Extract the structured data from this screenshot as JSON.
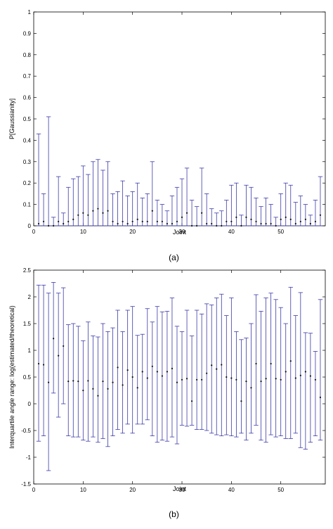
{
  "chart_data": [
    {
      "type": "scatter",
      "subplot_label": "(a)",
      "xlabel": "Joint",
      "ylabel": "P[Gaussianity]",
      "xlim": [
        0,
        59
      ],
      "ylim": [
        0,
        1
      ],
      "xticks": [
        0,
        10,
        20,
        30,
        40,
        50
      ],
      "yticks": [
        0,
        0.1,
        0.2,
        0.3,
        0.4,
        0.5,
        0.6,
        0.7,
        0.8,
        0.9,
        1
      ],
      "ytick_labels": [
        "0",
        "0.1",
        "0.2",
        "0.3",
        "0.4",
        "0.5",
        "0.6",
        "0.7",
        "0.8",
        "0.9",
        "1"
      ],
      "grid": false,
      "color": "#3a3aa8",
      "series": [
        {
          "x": [
            1,
            2,
            3,
            4,
            5,
            6,
            7,
            8,
            9,
            10,
            11,
            12,
            13,
            14,
            15,
            16,
            17,
            18,
            19,
            20,
            21,
            22,
            23,
            24,
            25,
            26,
            27,
            28,
            29,
            30,
            31,
            32,
            33,
            34,
            35,
            36,
            37,
            38,
            39,
            40,
            41,
            42,
            43,
            44,
            45,
            46,
            47,
            48,
            49,
            50,
            51,
            52,
            53,
            54,
            55,
            56,
            57,
            58
          ],
          "y": [
            0.01,
            0.02,
            0.0,
            0.0,
            0.02,
            0.01,
            0.02,
            0.03,
            0.05,
            0.06,
            0.05,
            0.07,
            0.08,
            0.06,
            0.07,
            0.02,
            0.01,
            0.02,
            0.01,
            0.02,
            0.03,
            0.02,
            0.02,
            0.07,
            0.02,
            0.02,
            0.01,
            0.01,
            0.02,
            0.04,
            0.06,
            0.0,
            0.0,
            0.06,
            0.01,
            0.01,
            0.0,
            0.0,
            0.02,
            0.02,
            0.04,
            0.0,
            0.04,
            0.03,
            0.02,
            0.01,
            0.01,
            0.01,
            0.0,
            0.03,
            0.04,
            0.03,
            0.01,
            0.02,
            0.03,
            0.01,
            0.02,
            0.05
          ],
          "low": [
            0,
            0,
            0,
            0,
            0,
            0,
            0,
            0,
            0,
            0,
            0,
            0,
            0,
            0,
            0,
            0,
            0,
            0,
            0,
            0,
            0,
            0,
            0,
            0,
            0,
            0,
            0,
            0,
            0,
            0,
            0,
            0,
            0,
            0,
            0,
            0,
            0,
            0,
            0,
            0,
            0,
            0,
            0,
            0,
            0,
            0,
            0,
            0,
            0,
            0,
            0,
            0,
            0,
            0,
            0,
            0,
            0,
            0
          ],
          "high": [
            0.43,
            0.15,
            0.51,
            0.04,
            0.23,
            0.06,
            0.18,
            0.22,
            0.23,
            0.28,
            0.24,
            0.3,
            0.31,
            0.26,
            0.3,
            0.15,
            0.16,
            0.21,
            0.14,
            0.16,
            0.2,
            0.13,
            0.15,
            0.3,
            0.12,
            0.1,
            0.07,
            0.14,
            0.18,
            0.22,
            0.27,
            0.12,
            0.09,
            0.27,
            0.15,
            0.08,
            0.06,
            0.07,
            0.12,
            0.19,
            0.2,
            0.05,
            0.19,
            0.18,
            0.13,
            0.09,
            0.13,
            0.1,
            0.04,
            0.15,
            0.2,
            0.19,
            0.11,
            0.14,
            0.1,
            0.05,
            0.12,
            0.23
          ]
        }
      ]
    },
    {
      "type": "scatter",
      "subplot_label": "(b)",
      "xlabel": "Joint",
      "ylabel": "Interquartile angle range: log(estimated/theoretical)",
      "xlim": [
        0,
        59
      ],
      "ylim": [
        -1.5,
        2.5
      ],
      "xticks": [
        0,
        10,
        20,
        30,
        40,
        50
      ],
      "yticks": [
        -1.5,
        -1,
        -0.5,
        0,
        0.5,
        1,
        1.5,
        2,
        2.5
      ],
      "ytick_labels": [
        "-1.5",
        "-1",
        "-0.5",
        "0",
        "0.5",
        "1",
        "1.5",
        "2",
        "2.5"
      ],
      "grid": false,
      "color": "#3a3aa8",
      "series": [
        {
          "x": [
            1,
            2,
            3,
            4,
            5,
            6,
            7,
            8,
            9,
            10,
            11,
            12,
            13,
            14,
            15,
            16,
            17,
            18,
            19,
            20,
            21,
            22,
            23,
            24,
            25,
            26,
            27,
            28,
            29,
            30,
            31,
            32,
            33,
            34,
            35,
            36,
            37,
            38,
            39,
            40,
            41,
            42,
            43,
            44,
            45,
            46,
            47,
            48,
            49,
            50,
            51,
            52,
            53,
            54,
            55,
            56,
            57,
            58
          ],
          "y": [
            0.75,
            0.73,
            0.4,
            1.22,
            0.9,
            1.08,
            0.42,
            0.43,
            0.42,
            0.25,
            0.43,
            0.28,
            0.15,
            0.42,
            0.28,
            0.4,
            0.68,
            0.35,
            0.63,
            0.5,
            0.3,
            0.6,
            0.48,
            0.7,
            0.6,
            0.52,
            0.6,
            0.66,
            0.4,
            0.45,
            0.47,
            0.05,
            0.45,
            0.45,
            0.57,
            0.72,
            0.65,
            0.73,
            0.5,
            0.48,
            0.45,
            0.05,
            0.42,
            0.3,
            0.75,
            0.42,
            0.47,
            0.75,
            0.47,
            0.45,
            0.6,
            0.8,
            0.48,
            0.53,
            0.6,
            0.52,
            0.45,
            0.12
          ],
          "low": [
            -0.7,
            -0.6,
            -1.25,
            0.2,
            -0.25,
            0.0,
            -0.6,
            -0.62,
            -0.62,
            -0.68,
            -0.7,
            -0.62,
            -0.72,
            -0.65,
            -0.8,
            -0.6,
            -0.48,
            -0.55,
            -0.38,
            -0.55,
            -0.38,
            -0.38,
            -0.3,
            -0.6,
            -0.72,
            -0.68,
            -0.7,
            -0.62,
            -0.75,
            -0.4,
            -0.42,
            -0.4,
            -0.48,
            -0.48,
            -0.5,
            -0.55,
            -0.58,
            -0.6,
            -0.58,
            -0.6,
            -0.62,
            -0.55,
            -0.68,
            -0.55,
            -0.4,
            -0.68,
            -0.72,
            -0.58,
            -0.62,
            -0.6,
            -0.65,
            -0.65,
            -0.55,
            -0.82,
            -0.85,
            -0.72,
            -0.6,
            -0.68
          ],
          "high": [
            2.22,
            2.22,
            2.07,
            2.27,
            2.07,
            2.17,
            1.48,
            1.5,
            1.45,
            1.18,
            1.53,
            1.27,
            1.25,
            1.5,
            1.35,
            1.42,
            1.75,
            1.35,
            1.75,
            1.82,
            1.28,
            1.3,
            1.78,
            1.53,
            1.82,
            1.72,
            1.73,
            1.98,
            1.45,
            1.35,
            1.75,
            1.27,
            1.75,
            1.68,
            1.87,
            1.85,
            1.98,
            2.05,
            1.65,
            1.98,
            1.35,
            1.2,
            1.23,
            1.5,
            2.04,
            1.73,
            1.98,
            2.07,
            1.95,
            1.8,
            1.5,
            2.18,
            1.65,
            2.08,
            1.33,
            1.32,
            0.98,
            1.95
          ]
        }
      ]
    }
  ]
}
